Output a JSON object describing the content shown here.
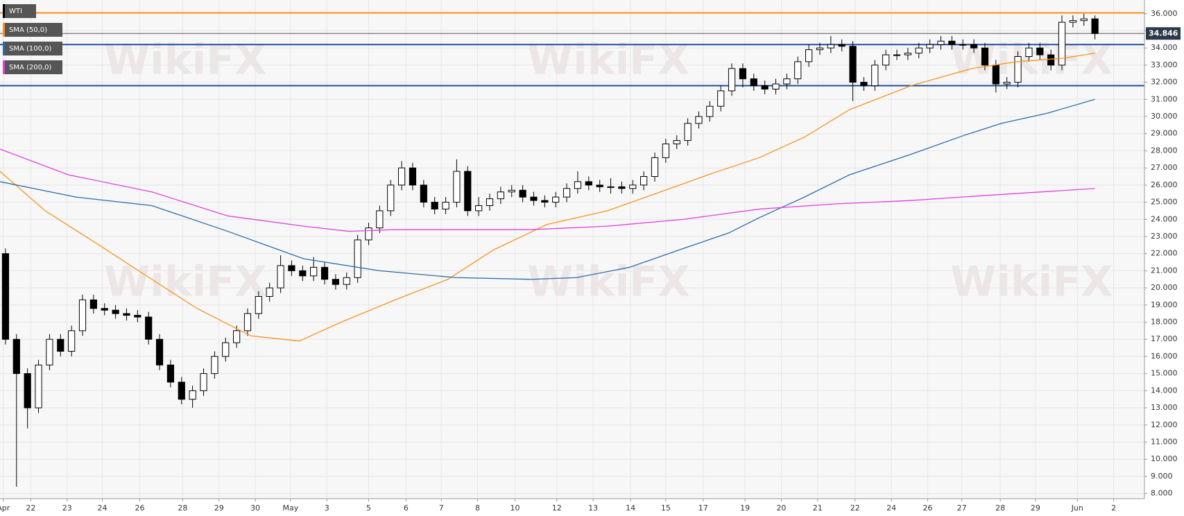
{
  "chart_data": {
    "type": "candlestick",
    "watermark": "WikiFX",
    "series": [
      {
        "name": "WTI",
        "type": "candlestick",
        "up_color": "#ffffff",
        "down_color": "#000000",
        "open": [
          22,
          17,
          15,
          13,
          15.5,
          17,
          16.3,
          17.5,
          19.3,
          18.8,
          18.7,
          18.5,
          18.4,
          18.3,
          17,
          15.5,
          14.5,
          13.5,
          14,
          15,
          16,
          16.8,
          17.5,
          18.5,
          19.5,
          20,
          21.3,
          21,
          20.7,
          21.2,
          20.5,
          20.2,
          20.6,
          22.8,
          23.5,
          24.5,
          26,
          27,
          26,
          25,
          24.6,
          25,
          26.8,
          24.5,
          24.8,
          25.2,
          25.6,
          25.7,
          25.3,
          25.1,
          25,
          25.3,
          25.8,
          26.2,
          26,
          25.9,
          25.9,
          25.8,
          26,
          26.5,
          27.6,
          28.4,
          28.6,
          29.6,
          30,
          30.6,
          31.5,
          32.8,
          32.2,
          31.8,
          31.6,
          31.9,
          32.2,
          33.2,
          33.9,
          34,
          34.2,
          34.1,
          32,
          31.8,
          33,
          33.6,
          33.6,
          33.7,
          34,
          34.2,
          34.4,
          34.2,
          34.2,
          34,
          33,
          31.9,
          32,
          33.5,
          34,
          33.6,
          33,
          35.5,
          35.6,
          35.7
        ],
        "high": [
          22.3,
          17.3,
          15.3,
          15.8,
          17.3,
          17.3,
          17.8,
          19.6,
          19.6,
          19.1,
          19.0,
          18.8,
          18.7,
          18.6,
          17.3,
          15.8,
          14.8,
          14.3,
          15.3,
          16.3,
          17.1,
          17.8,
          18.8,
          19.8,
          20.3,
          21.9,
          21.6,
          21.3,
          21.8,
          21.5,
          20.8,
          20.9,
          23.1,
          23.8,
          24.8,
          26.3,
          27.4,
          27.3,
          26.3,
          25.3,
          25.3,
          27.5,
          27.1,
          25.3,
          25.5,
          25.9,
          26.0,
          26.0,
          25.6,
          25.4,
          25.6,
          26.1,
          26.8,
          26.5,
          26.3,
          26.4,
          26.2,
          26.3,
          26.8,
          27.9,
          28.7,
          28.9,
          29.9,
          30.3,
          30.9,
          31.8,
          33.1,
          33.1,
          32.5,
          32.1,
          32.2,
          32.5,
          33.5,
          34.2,
          34.3,
          34.7,
          34.5,
          34.4,
          32.3,
          33.3,
          33.9,
          33.9,
          34.0,
          34.3,
          34.5,
          34.7,
          34.7,
          34.5,
          34.5,
          34.3,
          33.3,
          32.3,
          33.8,
          34.3,
          34.3,
          33.9,
          35.9,
          35.9,
          36.0,
          35.9
        ],
        "low": [
          16.7,
          8.4,
          11.8,
          12.7,
          15.2,
          16.0,
          16.0,
          17.2,
          18.5,
          18.4,
          18.2,
          18.1,
          18.0,
          16.7,
          15.2,
          14.2,
          13.2,
          13.0,
          13.7,
          14.7,
          15.7,
          16.5,
          17.2,
          18.2,
          19.2,
          19.7,
          20.7,
          20.4,
          20.4,
          20.2,
          19.9,
          19.9,
          20.3,
          22.5,
          23.2,
          24.2,
          25.7,
          25.7,
          24.7,
          24.3,
          24.3,
          24.7,
          24.2,
          24.2,
          24.5,
          24.9,
          25.3,
          25.0,
          24.8,
          24.7,
          24.7,
          25.0,
          25.5,
          25.7,
          25.6,
          25.5,
          25.5,
          25.5,
          25.7,
          26.2,
          27.3,
          28.1,
          28.3,
          29.3,
          29.7,
          30.3,
          31.2,
          31.7,
          31.5,
          31.3,
          31.3,
          31.6,
          31.9,
          32.9,
          33.6,
          33.7,
          33.8,
          30.9,
          31.5,
          31.5,
          32.7,
          33.3,
          33.3,
          33.4,
          33.7,
          33.9,
          33.9,
          33.9,
          33.7,
          32.7,
          31.4,
          31.6,
          31.7,
          33.2,
          33.3,
          32.7,
          32.7,
          35.2,
          35.3,
          34.5
        ],
        "close": [
          17,
          15,
          13,
          15.5,
          17,
          16.3,
          17.5,
          19.3,
          18.8,
          18.7,
          18.5,
          18.4,
          18.3,
          17,
          15.5,
          14.5,
          13.5,
          14,
          15,
          16,
          16.8,
          17.5,
          18.5,
          19.5,
          20,
          21.3,
          21,
          20.7,
          21.2,
          20.5,
          20.2,
          20.6,
          22.8,
          23.5,
          24.5,
          26,
          27,
          26,
          25,
          24.6,
          25,
          26.8,
          24.5,
          24.8,
          25.2,
          25.6,
          25.7,
          25.3,
          25.1,
          25,
          25.3,
          25.8,
          26.2,
          26,
          25.9,
          25.9,
          25.8,
          26,
          26.5,
          27.6,
          28.4,
          28.6,
          29.6,
          30,
          30.6,
          31.5,
          32.8,
          32.2,
          31.8,
          31.6,
          31.9,
          32.2,
          33.2,
          33.9,
          34,
          34.2,
          34.1,
          32,
          31.8,
          33,
          33.6,
          33.6,
          33.7,
          34,
          34.2,
          34.4,
          34.2,
          34.2,
          34,
          33,
          31.9,
          32,
          33.5,
          34,
          33.6,
          33,
          35.5,
          35.6,
          35.7,
          34.846
        ]
      },
      {
        "name": "SMA (50,0)",
        "type": "line",
        "color": "#f7931e",
        "x": [
          0,
          4.1,
          9,
          13.8,
          17.9,
          22.8,
          27.2,
          31,
          35.9,
          40.7,
          44.8,
          49.7,
          55.2,
          60,
          64.8,
          69,
          73.1,
          77.2,
          82.8,
          88.3,
          92.4,
          96.6,
          99.5
        ],
        "values": [
          26.8,
          24.5,
          22.5,
          20.5,
          18.8,
          17.2,
          16.9,
          18,
          19.3,
          20.5,
          22.2,
          23.7,
          24.5,
          25.6,
          26.7,
          27.6,
          28.8,
          30.4,
          31.8,
          32.8,
          33.2,
          33.4,
          33.7
        ]
      },
      {
        "name": "SMA (100,0)",
        "type": "line",
        "color": "#2d6aa8",
        "x": [
          0,
          6.9,
          13.8,
          20.7,
          27.6,
          34.5,
          41.4,
          48.3,
          52.4,
          57.2,
          62.1,
          66.2,
          69,
          73.1,
          77.2,
          82.8,
          87.6,
          91,
          95.2,
          99.5
        ],
        "values": [
          26.2,
          25.3,
          24.8,
          23.3,
          21.7,
          21,
          20.6,
          20.5,
          20.6,
          21.2,
          22.3,
          23.2,
          24.1,
          25.3,
          26.6,
          27.8,
          28.9,
          29.6,
          30.2,
          31
        ]
      },
      {
        "name": "SMA (200,0)",
        "type": "line",
        "color": "#e040e0",
        "x": [
          0,
          6.2,
          13.8,
          20.7,
          27.6,
          31.7,
          35.9,
          41.4,
          48.3,
          55.2,
          62.1,
          69,
          75.9,
          82.8,
          89.7,
          99.5
        ],
        "values": [
          28.1,
          26.6,
          25.6,
          24.2,
          23.6,
          23.3,
          23.4,
          23.4,
          23.4,
          23.6,
          24,
          24.6,
          24.9,
          25.1,
          25.4,
          25.8
        ]
      }
    ],
    "hlines": [
      {
        "value": 36.05,
        "color": "#f7931e"
      },
      {
        "value": 34.2,
        "color": "#1f4f99"
      },
      {
        "value": 31.8,
        "color": "#1f4f99"
      }
    ],
    "last_price": {
      "value": 34.846,
      "label": "34.846"
    },
    "xlim": [
      0,
      104
    ],
    "xticks": [
      {
        "value": 0.3,
        "label": "Apr"
      },
      {
        "value": 2.8,
        "label": "22"
      },
      {
        "value": 6.1,
        "label": "23"
      },
      {
        "value": 9.3,
        "label": "24"
      },
      {
        "value": 12.7,
        "label": "26"
      },
      {
        "value": 16.6,
        "label": "28"
      },
      {
        "value": 19.9,
        "label": "29"
      },
      {
        "value": 23.2,
        "label": "30"
      },
      {
        "value": 26.4,
        "label": "May"
      },
      {
        "value": 29.7,
        "label": "3"
      },
      {
        "value": 33.5,
        "label": "5"
      },
      {
        "value": 36.9,
        "label": "6"
      },
      {
        "value": 40.1,
        "label": "7"
      },
      {
        "value": 43.4,
        "label": "8"
      },
      {
        "value": 46.8,
        "label": "10"
      },
      {
        "value": 50.6,
        "label": "12"
      },
      {
        "value": 53.9,
        "label": "13"
      },
      {
        "value": 57.3,
        "label": "14"
      },
      {
        "value": 60.5,
        "label": "15"
      },
      {
        "value": 63.9,
        "label": "17"
      },
      {
        "value": 67.7,
        "label": "19"
      },
      {
        "value": 71,
        "label": "20"
      },
      {
        "value": 74.3,
        "label": "21"
      },
      {
        "value": 77.7,
        "label": "22"
      },
      {
        "value": 81,
        "label": "24"
      },
      {
        "value": 84.3,
        "label": "26"
      },
      {
        "value": 87.4,
        "label": "27"
      },
      {
        "value": 90.9,
        "label": "28"
      },
      {
        "value": 94.1,
        "label": "29"
      },
      {
        "value": 97.9,
        "label": "Jun"
      },
      {
        "value": 101.2,
        "label": "2"
      }
    ],
    "ylim": [
      7.7,
      36.8
    ],
    "yticks": [
      {
        "value": 8,
        "label": "8.000"
      },
      {
        "value": 9,
        "label": "9.000"
      },
      {
        "value": 10,
        "label": "10.000"
      },
      {
        "value": 11,
        "label": "11.000"
      },
      {
        "value": 12,
        "label": "12.000"
      },
      {
        "value": 13,
        "label": "13.000"
      },
      {
        "value": 14,
        "label": "14.000"
      },
      {
        "value": 15,
        "label": "15.000"
      },
      {
        "value": 16,
        "label": "16.000"
      },
      {
        "value": 17,
        "label": "17.000"
      },
      {
        "value": 18,
        "label": "18.000"
      },
      {
        "value": 19,
        "label": "19.000"
      },
      {
        "value": 20,
        "label": "20.000"
      },
      {
        "value": 21,
        "label": "21.000"
      },
      {
        "value": 22,
        "label": "22.000"
      },
      {
        "value": 23,
        "label": "23.000"
      },
      {
        "value": 24,
        "label": "24.000"
      },
      {
        "value": 25,
        "label": "25.000"
      },
      {
        "value": 26,
        "label": "26.000"
      },
      {
        "value": 27,
        "label": "27.000"
      },
      {
        "value": 28,
        "label": "28.000"
      },
      {
        "value": 29,
        "label": "29.000"
      },
      {
        "value": 30,
        "label": "30.000"
      },
      {
        "value": 31,
        "label": "31.000"
      },
      {
        "value": 32,
        "label": "32.000"
      },
      {
        "value": 33,
        "label": "33.000"
      },
      {
        "value": 34,
        "label": "34.000"
      },
      {
        "value": 35,
        "label": "35.000"
      },
      {
        "value": 36,
        "label": "36.000"
      }
    ],
    "grid": true
  }
}
